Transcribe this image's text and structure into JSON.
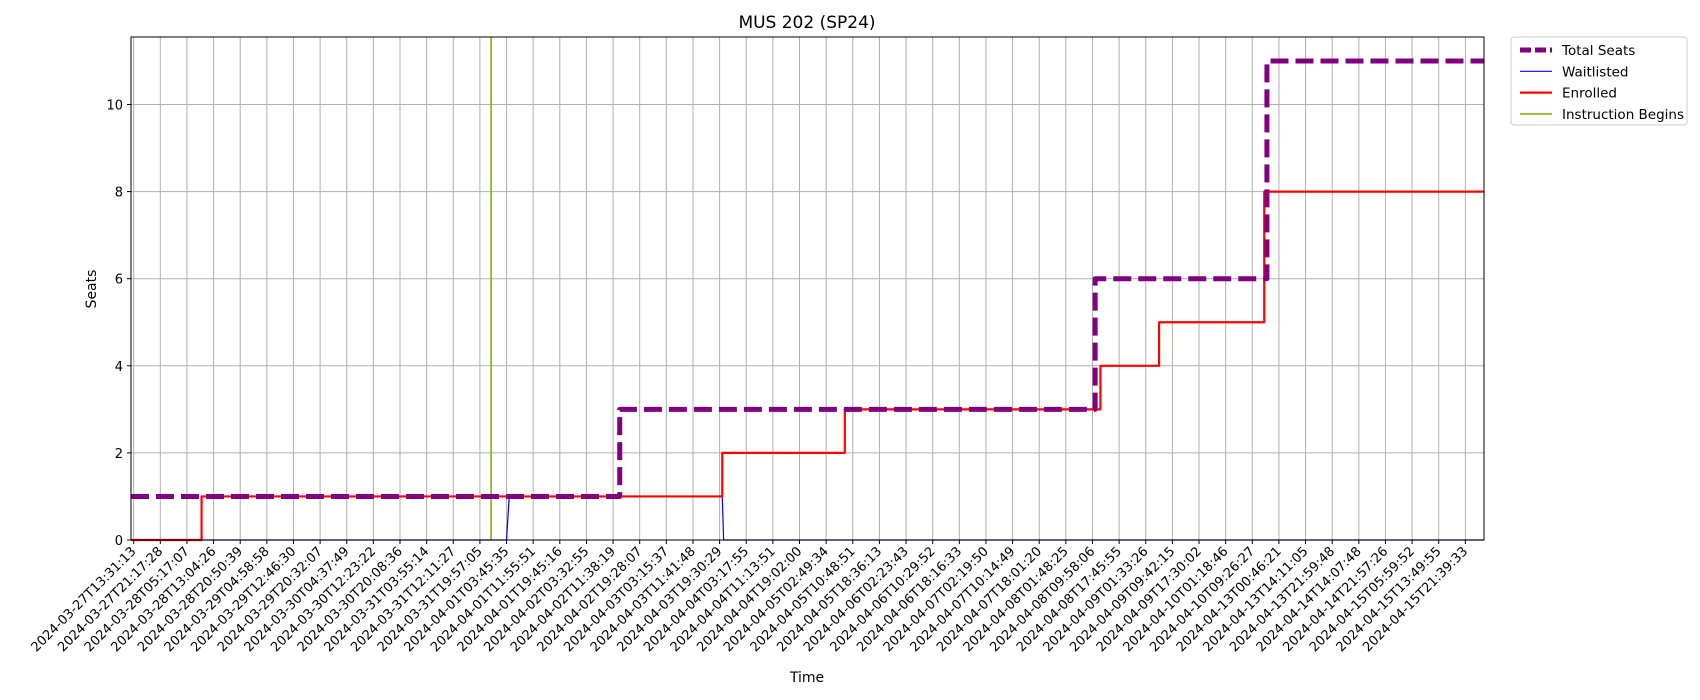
{
  "chart_data": {
    "type": "line",
    "title": "MUS 202 (SP24)",
    "xlabel": "Time",
    "ylabel": "Seats",
    "ylim": [
      0,
      11.55
    ],
    "y_ticks": [
      0,
      2,
      4,
      6,
      8,
      10
    ],
    "grid": true,
    "legend_position": "outside-top-right",
    "x_tick_labels": [
      "2024-03-27T13:31:13",
      "2024-03-27T21:17:28",
      "2024-03-28T05:17:07",
      "2024-03-28T13:04:26",
      "2024-03-28T20:50:39",
      "2024-03-29T04:58:58",
      "2024-03-29T12:46:30",
      "2024-03-29T20:32:07",
      "2024-03-30T04:37:49",
      "2024-03-30T12:23:22",
      "2024-03-30T20:08:36",
      "2024-03-31T03:55:14",
      "2024-03-31T12:11:27",
      "2024-03-31T19:57:05",
      "2024-04-01T03:45:35",
      "2024-04-01T11:55:51",
      "2024-04-01T19:45:16",
      "2024-04-02T03:32:55",
      "2024-04-02T11:38:19",
      "2024-04-02T19:28:07",
      "2024-04-03T03:15:37",
      "2024-04-03T11:41:48",
      "2024-04-03T19:30:29",
      "2024-04-04T03:17:55",
      "2024-04-04T11:13:51",
      "2024-04-04T19:02:00",
      "2024-04-05T02:49:34",
      "2024-04-05T10:48:51",
      "2024-04-05T18:36:13",
      "2024-04-06T02:23:43",
      "2024-04-06T10:29:52",
      "2024-04-06T18:16:33",
      "2024-04-07T02:19:50",
      "2024-04-07T10:14:49",
      "2024-04-07T18:01:20",
      "2024-04-08T01:48:25",
      "2024-04-08T09:58:06",
      "2024-04-08T17:45:55",
      "2024-04-09T01:33:26",
      "2024-04-09T09:42:15",
      "2024-04-09T17:30:02",
      "2024-04-10T01:18:46",
      "2024-04-10T09:26:27",
      "2024-04-13T00:46:21",
      "2024-04-13T14:11:05",
      "2024-04-13T21:59:48",
      "2024-04-14T14:07:48",
      "2024-04-14T21:57:26",
      "2024-04-15T05:59:52",
      "2024-04-15T13:49:55",
      "2024-04-15T21:39:33"
    ],
    "x_range": [
      -0.1,
      50.7
    ],
    "series": [
      {
        "name": "Total Seats",
        "color": "#800080",
        "style": "dashed-thick",
        "points": [
          [
            -0.1,
            1
          ],
          [
            18.25,
            1
          ],
          [
            18.25,
            3
          ],
          [
            36.1,
            3
          ],
          [
            36.1,
            6
          ],
          [
            42.55,
            6
          ],
          [
            42.55,
            11
          ],
          [
            50.7,
            11
          ]
        ]
      },
      {
        "name": "Waitlisted",
        "color": "#0000ff",
        "style": "thin",
        "points": [
          [
            -0.1,
            0
          ],
          [
            14.0,
            0
          ],
          [
            14.1,
            1
          ],
          [
            22.1,
            1
          ],
          [
            22.15,
            0
          ],
          [
            50.7,
            0
          ]
        ]
      },
      {
        "name": "Enrolled",
        "color": "#ff0000",
        "style": "solid",
        "points": [
          [
            -0.1,
            0
          ],
          [
            2.55,
            0
          ],
          [
            2.55,
            1
          ],
          [
            22.1,
            1
          ],
          [
            22.1,
            2
          ],
          [
            26.7,
            2
          ],
          [
            26.7,
            3
          ],
          [
            36.3,
            3
          ],
          [
            36.3,
            4
          ],
          [
            38.5,
            4
          ],
          [
            38.5,
            5
          ],
          [
            42.45,
            5
          ],
          [
            42.45,
            8
          ],
          [
            50.7,
            8
          ]
        ]
      },
      {
        "name": "Instruction Begins",
        "color": "#7fb300",
        "style": "vline",
        "x": 13.42
      }
    ]
  }
}
